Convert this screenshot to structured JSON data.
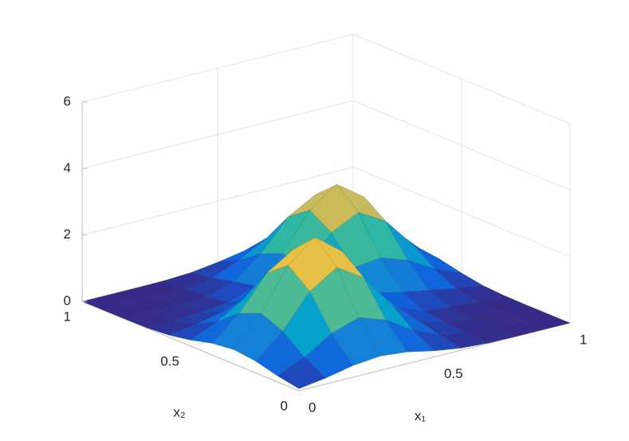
{
  "chart_data": {
    "type": "surface",
    "x": [
      0,
      0.1,
      0.2,
      0.3,
      0.4,
      0.5,
      0.6,
      0.7,
      0.8,
      0.9,
      1
    ],
    "y": [
      0,
      0.1,
      0.2,
      0.3,
      0.4,
      0.5,
      0.6,
      0.7,
      0.8,
      0.9,
      1
    ],
    "z": [
      [
        0.06,
        0.18,
        0.35,
        0.43,
        0.35,
        0.18,
        0.06,
        0.01,
        0,
        0,
        0
      ],
      [
        0.18,
        0.54,
        1.05,
        1.32,
        1.05,
        0.54,
        0.18,
        0.04,
        0.01,
        0,
        0
      ],
      [
        0.35,
        1.05,
        2.05,
        2.56,
        2.05,
        1.05,
        0.35,
        0.08,
        0.01,
        0,
        0
      ],
      [
        0.43,
        1.32,
        2.56,
        3.2,
        2.57,
        1.35,
        0.5,
        0.17,
        0.08,
        0.03,
        0.01
      ],
      [
        0.35,
        1.05,
        2.05,
        2.57,
        2.1,
        1.21,
        0.66,
        0.46,
        0.32,
        0.16,
        0.05
      ],
      [
        0.18,
        0.54,
        1.05,
        1.35,
        1.21,
        1.03,
        1.13,
        1.23,
        0.96,
        0.49,
        0.16
      ],
      [
        0.06,
        0.18,
        0.36,
        0.5,
        0.66,
        1.13,
        1.92,
        2.33,
        1.86,
        0.95,
        0.31
      ],
      [
        0.01,
        0.04,
        0.08,
        0.17,
        0.46,
        1.23,
        2.33,
        2.9,
        2.32,
        1.19,
        0.39
      ],
      [
        0,
        0.01,
        0.02,
        0.08,
        0.32,
        0.96,
        1.86,
        2.32,
        1.86,
        0.95,
        0.31
      ],
      [
        0,
        0,
        0,
        0.03,
        0.16,
        0.49,
        0.95,
        1.19,
        0.95,
        0.49,
        0.16
      ],
      [
        0,
        0,
        0,
        0.01,
        0.05,
        0.16,
        0.31,
        0.39,
        0.31,
        0.16,
        0.05
      ]
    ],
    "xlabel": "x₁",
    "ylabel": "x₂",
    "xlim": [
      0,
      1
    ],
    "ylim": [
      0,
      1
    ],
    "zlim": [
      0,
      6
    ],
    "xticks": [
      0,
      0.5,
      1
    ],
    "yticks": [
      0,
      0.5,
      1
    ],
    "zticks": [
      0,
      2,
      4,
      6
    ],
    "grid": true,
    "colormap": [
      "#352a87",
      "#0f5cdd",
      "#1481d6",
      "#06a4ca",
      "#2eb7a4",
      "#87bf77",
      "#d1bb59",
      "#fec832",
      "#f9fb0e"
    ]
  }
}
